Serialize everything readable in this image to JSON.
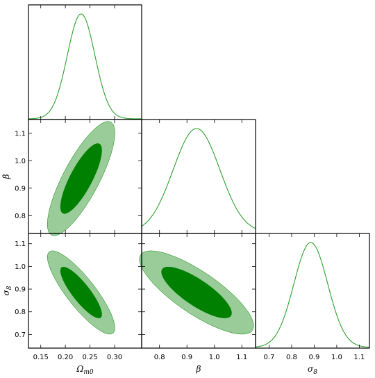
{
  "chart_data": {
    "type": "triangle-corner-plot",
    "title": "",
    "parameters": [
      {
        "id": "omega",
        "label_main": "Ω",
        "label_sub": "m0",
        "mean": 0.232,
        "sigma": 0.028,
        "range": [
          0.125,
          0.355
        ],
        "ticks": [
          0.15,
          0.2,
          0.25,
          0.3
        ],
        "tick_labels": [
          "0.15",
          "0.20",
          "0.25",
          "0.30"
        ]
      },
      {
        "id": "beta",
        "label_main": "β",
        "label_sub": "",
        "mean": 0.935,
        "sigma": 0.085,
        "range": [
          0.735,
          1.15
        ],
        "ticks": [
          0.8,
          0.9,
          1.0,
          1.1
        ],
        "tick_labels": [
          "0.8",
          "0.9",
          "1.0",
          "1.1"
        ]
      },
      {
        "id": "sigma8",
        "label_main": "σ",
        "label_sub": "8",
        "mean": 0.885,
        "sigma": 0.075,
        "range": [
          0.64,
          1.145
        ],
        "ticks": [
          0.7,
          0.8,
          0.9,
          1.0,
          1.1
        ],
        "tick_labels": [
          "0.7",
          "0.8",
          "0.9",
          "1.0",
          "1.1"
        ]
      }
    ],
    "correlations": {
      "omega_beta": 0.8,
      "omega_sigma8": -0.85,
      "beta_sigma8": -0.8
    },
    "contour_levels": [
      "68%",
      "95%"
    ],
    "colors": {
      "line": "#2ca02c",
      "contour_inner": "#008000",
      "contour_outer": "#99cc99"
    }
  }
}
